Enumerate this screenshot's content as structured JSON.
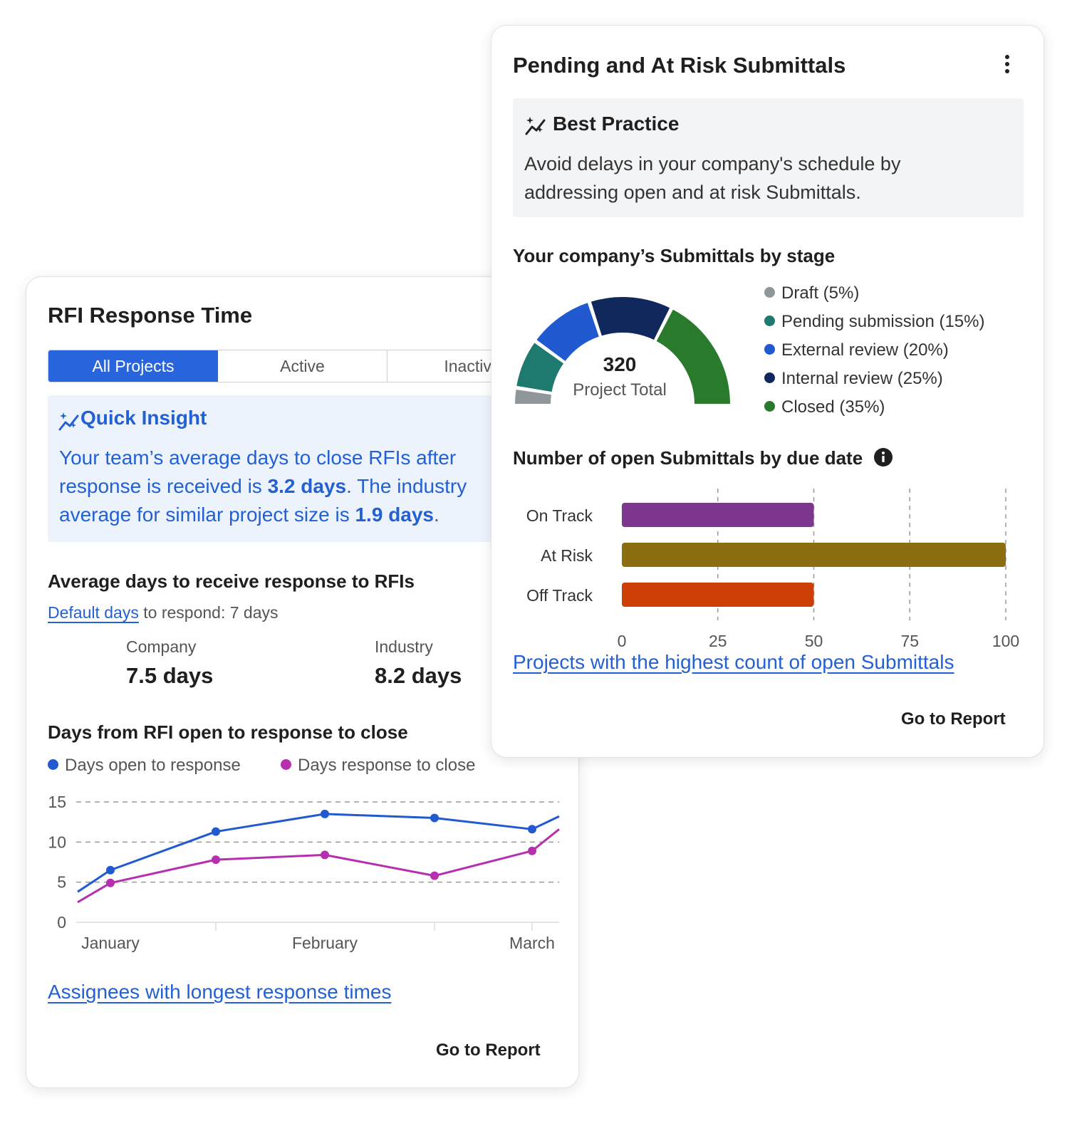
{
  "rfi_card": {
    "title": "RFI Response Time",
    "tabs": [
      {
        "label": "All Projects",
        "active": true
      },
      {
        "label": "Active",
        "active": false
      },
      {
        "label": "Inactive",
        "active": false
      }
    ],
    "quick_insight": {
      "title": "Quick Insight",
      "line1": "Your team’s average days to close RFIs after",
      "line2_pre": "response is received is ",
      "line2_bold": "3.2 days",
      "line2_post": ". The industry",
      "line3_pre": "average for similar project size is ",
      "line3_bold": "1.9 days",
      "line3_post": "."
    },
    "avg_section": {
      "title": "Average days to receive response to RFIs",
      "default_link": "Default days",
      "default_suffix": " to respond: 7 days",
      "company_label": "Company",
      "company_value": "7.5 days",
      "industry_label": "Industry",
      "industry_value": "8.2 days"
    },
    "line_title": "Days from RFI open to response to close",
    "assignees_link": "Assignees with longest response times",
    "go_to_report": "Go to Report"
  },
  "submittals_card": {
    "title": "Pending and At Risk Submittals",
    "menu_icon": "more-vertical-icon",
    "best_practice": {
      "title": "Best Practice",
      "line1": "Avoid delays in your company's schedule by",
      "line2": "addressing open and at risk Submittals."
    },
    "stage_title": "Your company’s Submittals by stage",
    "bar_title": "Number of open Submittals by due date",
    "projects_link": "Projects with the highest count of open Submittals",
    "go_to_report": "Go to Report"
  },
  "chart_data": [
    {
      "type": "pie",
      "style": "half-donut",
      "title": "Your company’s Submittals by stage",
      "center_value": "320",
      "center_label": "Project Total",
      "slices": [
        {
          "label": "Draft (5%)",
          "value": 5,
          "color": "#8f979b"
        },
        {
          "label": "Pending submission (15%)",
          "value": 15,
          "color": "#1e7a6e"
        },
        {
          "label": "External review (20%)",
          "value": 20,
          "color": "#2159d0"
        },
        {
          "label": "Internal review (25%)",
          "value": 25,
          "color": "#10285c"
        },
        {
          "label": "Closed (35%)",
          "value": 35,
          "color": "#2a7a2e"
        }
      ],
      "legend": "right"
    },
    {
      "type": "bar",
      "orientation": "horizontal",
      "title": "Number of open Submittals by due date",
      "categories": [
        "On Track",
        "At Risk",
        "Off Track"
      ],
      "values": [
        50,
        100,
        50
      ],
      "colors": [
        "#7d378f",
        "#8b6e10",
        "#cc3f07"
      ],
      "xlim": [
        0,
        100
      ],
      "xticks": [
        0,
        25,
        50,
        75,
        100
      ],
      "grid": true
    },
    {
      "type": "line",
      "title": "Days from RFI open to response to close",
      "x_labels": [
        "January",
        "February",
        "March"
      ],
      "yticks": [
        0,
        5,
        10,
        15
      ],
      "ylim": [
        0,
        15
      ],
      "legend": "top-left",
      "series": [
        {
          "name": "Days open to response",
          "color": "#2159d0",
          "values": [
            3.8,
            6.5,
            11.3,
            13.5,
            13.0,
            11.6,
            13.2
          ]
        },
        {
          "name": "Days response to close",
          "color": "#b62fae",
          "values": [
            2.5,
            4.9,
            7.8,
            8.4,
            5.8,
            8.9,
            11.6
          ]
        }
      ]
    }
  ]
}
